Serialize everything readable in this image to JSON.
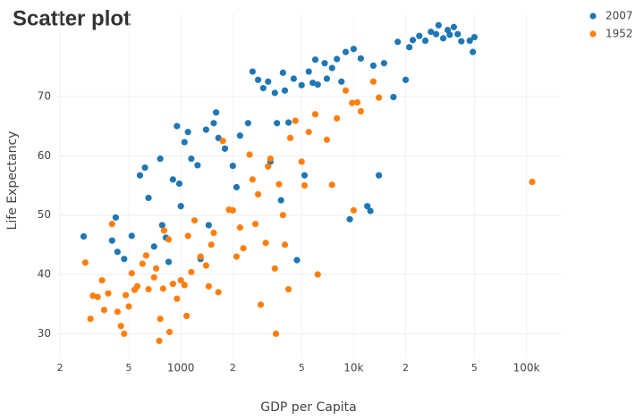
{
  "chart_data": {
    "type": "scatter",
    "title": "Scatter plot",
    "x_label": "GDP per Capita",
    "y_label": "Life Expectancy",
    "xscale": "log",
    "grid": true,
    "legend": "top-right",
    "xlim": [
      195,
      160000
    ],
    "ylim": [
      26,
      84
    ],
    "xticks": [
      {
        "value": 200,
        "label": "2"
      },
      {
        "value": 500,
        "label": "5"
      },
      1000,
      {
        "value": 2000,
        "label": "2"
      },
      {
        "value": 5000,
        "label": "5"
      },
      {
        "value": 10000,
        "label": "10k"
      },
      {
        "value": 20000,
        "label": "2"
      },
      {
        "value": 50000,
        "label": "5"
      },
      {
        "value": 100000,
        "label": "100k"
      }
    ],
    "yticks": [
      30,
      40,
      50,
      60,
      70
    ],
    "series": [
      {
        "name": "2007",
        "color": "#1f77b4",
        "x": [
          274,
          400,
          420,
          430,
          470,
          520,
          580,
          620,
          650,
          700,
          760,
          780,
          820,
          850,
          900,
          950,
          980,
          1000,
          1050,
          1100,
          1150,
          1250,
          1300,
          1400,
          1450,
          1550,
          1600,
          1650,
          1800,
          2000,
          2100,
          2200,
          2450,
          2600,
          2800,
          3000,
          3200,
          3300,
          3500,
          3600,
          3800,
          3900,
          4000,
          4200,
          4500,
          4700,
          5000,
          5200,
          5500,
          5800,
          6000,
          6200,
          6800,
          7000,
          7500,
          8000,
          8500,
          9000,
          9500,
          10000,
          11000,
          12000,
          12500,
          13000,
          14000,
          15000,
          17000,
          18000,
          20000,
          21000,
          22000,
          24000,
          26000,
          28000,
          30000,
          31000,
          33000,
          35000,
          36000,
          38000,
          40000,
          42000,
          47000,
          50000,
          49000
        ],
        "values": [
          46.4,
          45.7,
          49.6,
          43.8,
          42.6,
          46.5,
          56.7,
          58.0,
          52.9,
          44.7,
          59.5,
          48.3,
          46.2,
          42.1,
          56.0,
          65.0,
          55.3,
          51.5,
          62.3,
          64.0,
          59.5,
          58.4,
          42.6,
          64.4,
          48.3,
          65.5,
          67.3,
          63.0,
          61.2,
          58.3,
          54.7,
          63.4,
          65.5,
          74.2,
          72.8,
          71.4,
          72.5,
          59.0,
          70.6,
          65.5,
          52.5,
          74.0,
          71.0,
          65.6,
          73.0,
          42.4,
          71.9,
          56.7,
          74.2,
          72.3,
          76.2,
          72.0,
          75.6,
          73.0,
          74.8,
          76.3,
          72.5,
          77.5,
          49.3,
          78.0,
          76.4,
          51.5,
          50.7,
          75.2,
          56.7,
          75.6,
          69.9,
          79.2,
          72.8,
          78.3,
          79.5,
          80.2,
          79.4,
          80.9,
          80.5,
          82.0,
          79.8,
          81.2,
          80.4,
          81.7,
          80.5,
          79.3,
          79.4,
          80.0,
          77.5
        ]
      },
      {
        "name": "1952",
        "color": "#ff7f0e",
        "x": [
          280,
          300,
          310,
          330,
          350,
          360,
          380,
          400,
          430,
          450,
          470,
          480,
          500,
          520,
          540,
          560,
          600,
          630,
          650,
          700,
          720,
          750,
          760,
          790,
          800,
          850,
          860,
          900,
          950,
          1000,
          1050,
          1080,
          1100,
          1150,
          1200,
          1300,
          1400,
          1450,
          1500,
          1550,
          1650,
          1750,
          1900,
          2000,
          2100,
          2200,
          2300,
          2500,
          2600,
          2700,
          2800,
          2900,
          3100,
          3200,
          3300,
          3500,
          3550,
          3700,
          3900,
          4000,
          4200,
          4300,
          4600,
          5000,
          5200,
          5500,
          6000,
          6200,
          7000,
          7500,
          8000,
          9000,
          9800,
          10000,
          10500,
          11000,
          13000,
          14000,
          108000
        ],
        "values": [
          42.0,
          32.5,
          36.4,
          36.2,
          39.0,
          34.0,
          36.8,
          48.5,
          33.7,
          31.3,
          30.0,
          36.5,
          34.6,
          40.2,
          37.4,
          38.0,
          41.8,
          43.2,
          37.5,
          39.5,
          41.0,
          28.8,
          32.5,
          37.6,
          47.4,
          45.9,
          30.3,
          38.4,
          35.9,
          39.0,
          38.2,
          33.0,
          46.5,
          40.4,
          49.1,
          43.0,
          41.5,
          38.0,
          45.0,
          47.0,
          37.0,
          62.5,
          50.9,
          50.8,
          43.0,
          47.9,
          44.4,
          60.2,
          56.0,
          48.5,
          53.5,
          34.9,
          45.3,
          58.2,
          59.5,
          41.0,
          30.0,
          55.2,
          50.0,
          45.0,
          37.5,
          63.0,
          65.9,
          59.0,
          55.0,
          64.0,
          67.0,
          40.0,
          62.7,
          55.1,
          66.3,
          71.0,
          68.9,
          50.8,
          69.0,
          67.5,
          72.5,
          69.8,
          55.6
        ]
      }
    ]
  }
}
